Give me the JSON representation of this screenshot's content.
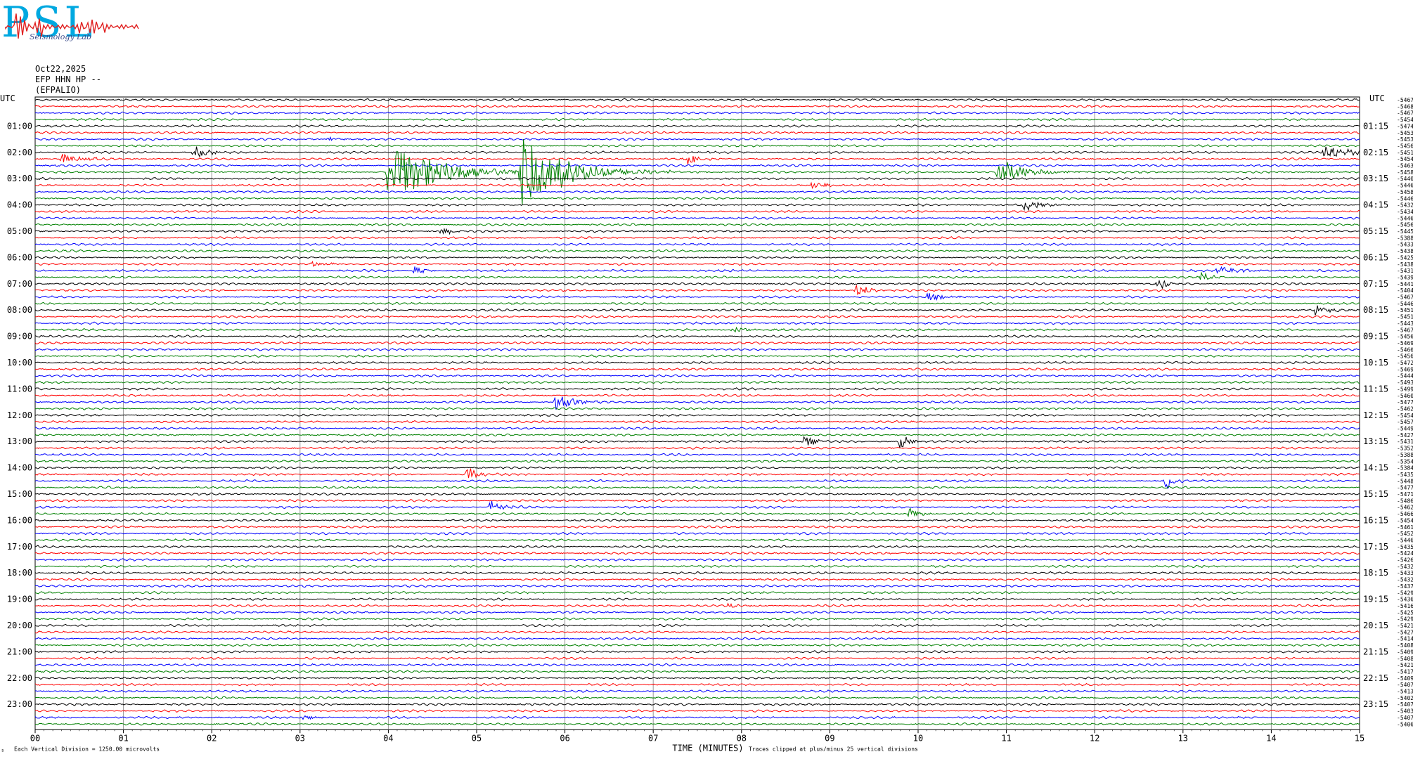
{
  "logo": {
    "letters": "PSL",
    "subtitle": "Seismology Lab"
  },
  "header": {
    "date": "Oct22,2025",
    "station": "EFP HHN HP --",
    "site": "(EFPALIO)"
  },
  "axis_labels": {
    "left_utc": "UTC",
    "right_utc": "UTC",
    "xlabel": "TIME (MINUTES)",
    "scale_note": "Each Vertical Division = 1250.00 microvolts",
    "clip_note": "Traces clipped at plus/minus 25 vertical divisions",
    "corner_mark": "s"
  },
  "colors": {
    "trace_cycle": [
      "#000000",
      "#ff0000",
      "#0000ff",
      "#008000"
    ],
    "grid": "#999999"
  },
  "chart_data": {
    "type": "line",
    "title": "",
    "xlabel": "TIME (MINUTES)",
    "x_ticks": [
      "00",
      "01",
      "02",
      "03",
      "04",
      "05",
      "06",
      "07",
      "08",
      "09",
      "10",
      "11",
      "12",
      "13",
      "14",
      "15"
    ],
    "xlim": [
      0,
      15
    ],
    "rows_per_hour": 4,
    "row_count": 96,
    "left_hour_labels": [
      "01:00",
      "02:00",
      "03:00",
      "04:00",
      "05:00",
      "06:00",
      "07:00",
      "08:00",
      "09:00",
      "10:00",
      "11:00",
      "12:00",
      "13:00",
      "14:00",
      "15:00",
      "16:00",
      "17:00",
      "18:00",
      "19:00",
      "20:00",
      "21:00",
      "22:00",
      "23:00"
    ],
    "right_hour_labels": [
      "01:15",
      "02:15",
      "03:15",
      "04:15",
      "05:15",
      "06:15",
      "07:15",
      "08:15",
      "09:15",
      "10:15",
      "11:15",
      "12:15",
      "13:15",
      "14:15",
      "15:15",
      "16:15",
      "17:15",
      "18:15",
      "19:15",
      "20:15",
      "21:15",
      "22:15",
      "23:15"
    ],
    "right_offsets": [
      "-5467",
      "-5468",
      "-5467",
      "-5454",
      "-5474",
      "-5453",
      "-5453",
      "-5456",
      "-5451",
      "-5454",
      "-5463",
      "-5458",
      "-5440",
      "-5446",
      "-5458",
      "-5446",
      "-5432",
      "-5434",
      "-5446",
      "-5456",
      "-5445",
      "-5388",
      "-5433",
      "-5438",
      "-5425",
      "-5438",
      "-5431",
      "-5439",
      "-5441",
      "-5404",
      "-5467",
      "-5446",
      "-5451",
      "-5451",
      "-5443",
      "-5467",
      "-5456",
      "-5469",
      "-5460",
      "-5456",
      "-5472",
      "-5469",
      "-5444",
      "-5493",
      "-5499",
      "-5460",
      "-5477",
      "-5462",
      "-5454",
      "-5457",
      "-5449",
      "-5427",
      "-5431",
      "-5352",
      "-5388",
      "-5354",
      "-5384",
      "-5435",
      "-5448",
      "-5477",
      "-5471",
      "-5486",
      "-5462",
      "-5466",
      "-5454",
      "-5461",
      "-5452",
      "-5446",
      "-5435",
      "-5424",
      "-5426",
      "-5432",
      "-5433",
      "-5432",
      "-5437",
      "-5429",
      "-5436",
      "-5416",
      "-5425",
      "-5429",
      "-5421",
      "-5427",
      "-5414",
      "-5408",
      "-5409",
      "-5408",
      "-5421",
      "-5417",
      "-5409",
      "-5407",
      "-5413",
      "-5402",
      "-5407",
      "-5403",
      "-5407",
      "-5406"
    ],
    "events": [
      {
        "row": 9,
        "minute": 0.3,
        "amp": 8,
        "dur": 0.4
      },
      {
        "row": 8,
        "minute": 1.8,
        "amp": 10,
        "dur": 0.3
      },
      {
        "row": 6,
        "minute": 3.3,
        "amp": 3,
        "dur": 0.3
      },
      {
        "row": 11,
        "minute": 4.0,
        "amp": 45,
        "dur": 1.2
      },
      {
        "row": 11,
        "minute": 5.5,
        "amp": 55,
        "dur": 1.0
      },
      {
        "row": 9,
        "minute": 7.35,
        "amp": 14,
        "dur": 0.2
      },
      {
        "row": 13,
        "minute": 8.8,
        "amp": 6,
        "dur": 0.5
      },
      {
        "row": 11,
        "minute": 10.9,
        "amp": 20,
        "dur": 0.6
      },
      {
        "row": 16,
        "minute": 11.2,
        "amp": 8,
        "dur": 0.4
      },
      {
        "row": 8,
        "minute": 14.6,
        "amp": 12,
        "dur": 0.6
      },
      {
        "row": 20,
        "minute": 4.6,
        "amp": 6,
        "dur": 0.3
      },
      {
        "row": 25,
        "minute": 3.1,
        "amp": 4,
        "dur": 0.5
      },
      {
        "row": 26,
        "minute": 4.3,
        "amp": 7,
        "dur": 0.2
      },
      {
        "row": 29,
        "minute": 9.3,
        "amp": 8,
        "dur": 0.4
      },
      {
        "row": 30,
        "minute": 10.1,
        "amp": 6,
        "dur": 0.4
      },
      {
        "row": 28,
        "minute": 12.7,
        "amp": 14,
        "dur": 0.2
      },
      {
        "row": 27,
        "minute": 13.2,
        "amp": 8,
        "dur": 0.2
      },
      {
        "row": 26,
        "minute": 13.4,
        "amp": 7,
        "dur": 0.5
      },
      {
        "row": 32,
        "minute": 14.5,
        "amp": 8,
        "dur": 0.3
      },
      {
        "row": 35,
        "minute": 7.9,
        "amp": 6,
        "dur": 0.3
      },
      {
        "row": 46,
        "minute": 5.9,
        "amp": 12,
        "dur": 0.4
      },
      {
        "row": 52,
        "minute": 8.7,
        "amp": 14,
        "dur": 0.2
      },
      {
        "row": 52,
        "minute": 9.8,
        "amp": 12,
        "dur": 0.2
      },
      {
        "row": 57,
        "minute": 4.9,
        "amp": 12,
        "dur": 0.2
      },
      {
        "row": 58,
        "minute": 12.8,
        "amp": 18,
        "dur": 0.15
      },
      {
        "row": 62,
        "minute": 5.15,
        "amp": 10,
        "dur": 0.3
      },
      {
        "row": 63,
        "minute": 9.9,
        "amp": 10,
        "dur": 0.2
      },
      {
        "row": 77,
        "minute": 7.85,
        "amp": 4,
        "dur": 0.2
      },
      {
        "row": 82,
        "minute": 11.2,
        "amp": 3,
        "dur": 0.3
      },
      {
        "row": 94,
        "minute": 3.0,
        "amp": 4,
        "dur": 0.3
      }
    ]
  }
}
